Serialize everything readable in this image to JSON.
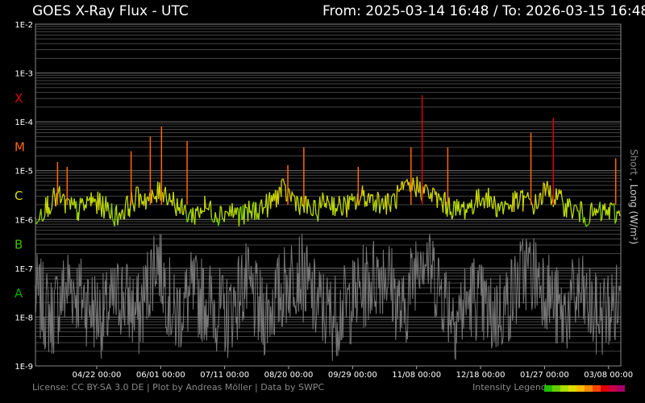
{
  "header": {
    "title": "GOES X-Ray Flux - UTC",
    "range": "From: 2025-03-14 16:48  /  To: 2026-03-15 16:48"
  },
  "footer": {
    "license": "License: CC BY-SA 3.0 DE | Plot by Andreas Möller | Data by SWPC",
    "legend_label": "Intensity Legend",
    "legend_colors": [
      "#22bb00",
      "#66cc00",
      "#aadd00",
      "#dddd00",
      "#ffbb00",
      "#ff8800",
      "#ff4400",
      "#dd0000",
      "#cc0044",
      "#aa0066"
    ]
  },
  "chart_data": {
    "type": "line",
    "title": "GOES X-Ray Flux - UTC",
    "xlabel": "",
    "ylabel": "Short , Long (W/m²)",
    "ylabel_short": "Short",
    "ylabel_rest": " , Long (W/m²)",
    "yscale": "log",
    "ylim": [
      1e-09,
      0.01
    ],
    "y_tick_labels": [
      "1E-2",
      "1E-3",
      "1E-4",
      "1E-5",
      "1E-6",
      "1E-7",
      "1E-8",
      "1E-9"
    ],
    "flare_classes": [
      {
        "label": "X",
        "color": "#dd0000"
      },
      {
        "label": "M",
        "color": "#ff6600"
      },
      {
        "label": "C",
        "color": "#dddd00"
      },
      {
        "label": "B",
        "color": "#44bb00"
      },
      {
        "label": "A",
        "color": "#00aa00"
      }
    ],
    "xlim": [
      "2025-03-14T16:48",
      "2026-03-15T16:48"
    ],
    "x_ticks": [
      {
        "label": "04/22 00:00",
        "date": "2025-04-22T00:00"
      },
      {
        "label": "06/01 00:00",
        "date": "2025-06-01T00:00"
      },
      {
        "label": "07/11 00:00",
        "date": "2025-07-11T00:00"
      },
      {
        "label": "08/20 00:00",
        "date": "2025-08-20T00:00"
      },
      {
        "label": "09/29 00:00",
        "date": "2025-09-29T00:00"
      },
      {
        "label": "11/08 00:00",
        "date": "2025-11-08T00:00"
      },
      {
        "label": "12/18 00:00",
        "date": "2025-12-18T00:00"
      },
      {
        "label": "01/27 00:00",
        "date": "2026-01-27T00:00"
      },
      {
        "label": "03/08 00:00",
        "date": "2026-03-08T00:00"
      }
    ],
    "grid": true,
    "series": [
      {
        "name": "Long",
        "x": [
          "2025-03-14",
          "2025-03-22",
          "2025-03-28",
          "2025-04-02",
          "2025-04-10",
          "2025-04-18",
          "2025-04-26",
          "2025-05-04",
          "2025-05-12",
          "2025-05-18",
          "2025-05-26",
          "2025-06-01",
          "2025-06-06",
          "2025-06-14",
          "2025-06-20",
          "2025-06-28",
          "2025-07-06",
          "2025-07-14",
          "2025-07-22",
          "2025-07-30",
          "2025-08-07",
          "2025-08-15",
          "2025-08-21",
          "2025-08-28",
          "2025-09-05",
          "2025-09-12",
          "2025-09-20",
          "2025-09-28",
          "2025-10-05",
          "2025-10-13",
          "2025-10-21",
          "2025-10-29",
          "2025-11-06",
          "2025-11-11",
          "2025-11-18",
          "2025-11-26",
          "2025-12-04",
          "2025-12-12",
          "2025-12-20",
          "2025-12-28",
          "2026-01-05",
          "2026-01-13",
          "2026-01-21",
          "2026-01-27",
          "2026-02-01",
          "2026-02-08",
          "2026-02-15",
          "2026-02-22",
          "2026-03-01",
          "2026-03-08",
          "2026-03-15"
        ],
        "y": [
          1.2e-06,
          2e-06,
          3e-06,
          2e-06,
          1.5e-06,
          2.5e-06,
          1.8e-06,
          1.2e-06,
          2e-06,
          3e-06,
          2.5e-06,
          4e-06,
          3e-06,
          1.5e-06,
          1.2e-06,
          1.8e-06,
          1.3e-06,
          1.5e-06,
          1.2e-06,
          1.6e-06,
          2e-06,
          4e-06,
          3e-06,
          2e-06,
          1.4e-06,
          2.5e-06,
          1.8e-06,
          2e-06,
          3e-06,
          2.5e-06,
          2e-06,
          3.5e-06,
          5e-06,
          4e-06,
          3e-06,
          2e-06,
          1.5e-06,
          2e-06,
          3e-06,
          1.8e-06,
          2e-06,
          2.5e-06,
          2e-06,
          4e-06,
          3e-06,
          2e-06,
          1.5e-06,
          1.2e-06,
          1.3e-06,
          1.5e-06,
          1.2e-06
        ]
      },
      {
        "name": "Short",
        "x": [
          "2025-03-14",
          "2025-03-24",
          "2025-04-04",
          "2025-04-15",
          "2025-04-26",
          "2025-05-07",
          "2025-05-18",
          "2025-05-29",
          "2025-06-09",
          "2025-06-20",
          "2025-07-01",
          "2025-07-12",
          "2025-07-23",
          "2025-08-03",
          "2025-08-14",
          "2025-08-25",
          "2025-09-05",
          "2025-09-16",
          "2025-09-27",
          "2025-10-08",
          "2025-10-19",
          "2025-10-30",
          "2025-11-10",
          "2025-11-21",
          "2025-12-02",
          "2025-12-13",
          "2025-12-24",
          "2026-01-04",
          "2026-01-15",
          "2026-01-26",
          "2026-02-06",
          "2026-02-17",
          "2026-02-28",
          "2026-03-15"
        ],
        "y": [
          3e-08,
          1e-08,
          5e-08,
          2e-08,
          1e-08,
          3e-08,
          1e-08,
          2e-07,
          1e-08,
          3e-08,
          2e-08,
          1e-08,
          5e-08,
          1e-08,
          3e-08,
          1e-07,
          2e-08,
          1e-08,
          2e-08,
          5e-08,
          1e-07,
          1e-08,
          3e-07,
          5e-08,
          1e-08,
          3e-08,
          1e-08,
          2e-08,
          1e-07,
          5e-08,
          1e-08,
          3e-08,
          1e-08,
          2e-08
        ]
      }
    ],
    "flares": [
      {
        "date": "2025-03-28",
        "peak": 1.5e-05
      },
      {
        "date": "2025-04-03",
        "peak": 1.2e-05
      },
      {
        "date": "2025-05-13",
        "peak": 2.5e-05
      },
      {
        "date": "2025-05-25",
        "peak": 5e-05
      },
      {
        "date": "2025-06-01",
        "peak": 8e-05
      },
      {
        "date": "2025-06-17",
        "peak": 4e-05
      },
      {
        "date": "2025-08-19",
        "peak": 1.3e-05
      },
      {
        "date": "2025-08-29",
        "peak": 3e-05
      },
      {
        "date": "2025-10-02",
        "peak": 1.2e-05
      },
      {
        "date": "2025-11-04",
        "peak": 3e-05
      },
      {
        "date": "2025-11-11",
        "peak": 0.00035
      },
      {
        "date": "2025-11-27",
        "peak": 3e-05
      },
      {
        "date": "2026-01-18",
        "peak": 6e-05
      },
      {
        "date": "2026-02-01",
        "peak": 0.00012
      },
      {
        "date": "2026-03-12",
        "peak": 1.8e-05
      }
    ]
  }
}
